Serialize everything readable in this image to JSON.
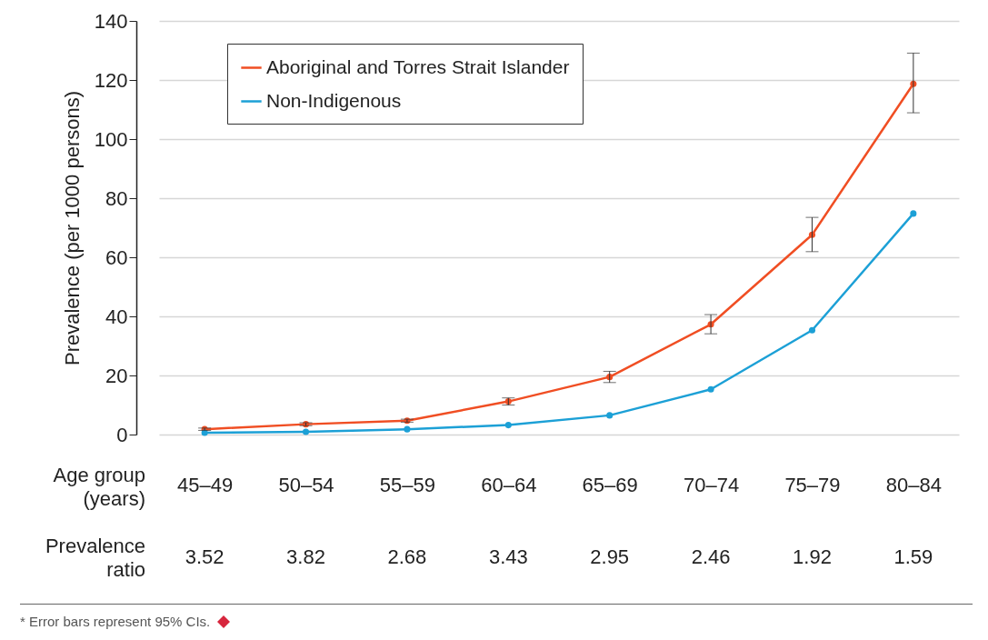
{
  "chart_data": {
    "type": "line",
    "xlabel": "Age group\n(years)",
    "ylabel": "Prevalence (per 1000 persons)",
    "categories": [
      "45–49",
      "50–54",
      "55–59",
      "60–64",
      "65–69",
      "70–74",
      "75–79",
      "80–84"
    ],
    "series": [
      {
        "name": "Aboriginal and Torres Strait Islander",
        "color": "#f04e23",
        "values": [
          1.8,
          3.5,
          4.7,
          11.2,
          19.5,
          37.3,
          67.6,
          118.7
        ],
        "errors": [
          [
            1.4,
            2.2
          ],
          [
            3.0,
            4.0
          ],
          [
            4.2,
            5.2
          ],
          [
            10.0,
            12.4
          ],
          [
            17.6,
            21.4
          ],
          [
            34.1,
            40.6
          ],
          [
            61.9,
            73.5
          ],
          [
            108.9,
            129.1
          ]
        ]
      },
      {
        "name": "Non-Indigenous",
        "color": "#1ca0d6",
        "values": [
          0.6,
          0.9,
          1.8,
          3.2,
          6.5,
          15.3,
          35.3,
          74.8
        ]
      }
    ],
    "ylim": [
      0,
      140
    ],
    "yticks": [
      0,
      20,
      40,
      60,
      80,
      100,
      120,
      140
    ],
    "grid": "y",
    "legend": "top left",
    "marker": "circle",
    "line_style": "solid",
    "annotations": [
      "Prevalence\nratio",
      "* Error bars represent 95% CIs.",
      "3.52",
      "3.82",
      "2.68",
      "3.43",
      "2.95",
      "2.46",
      "1.92",
      "1.59"
    ]
  }
}
